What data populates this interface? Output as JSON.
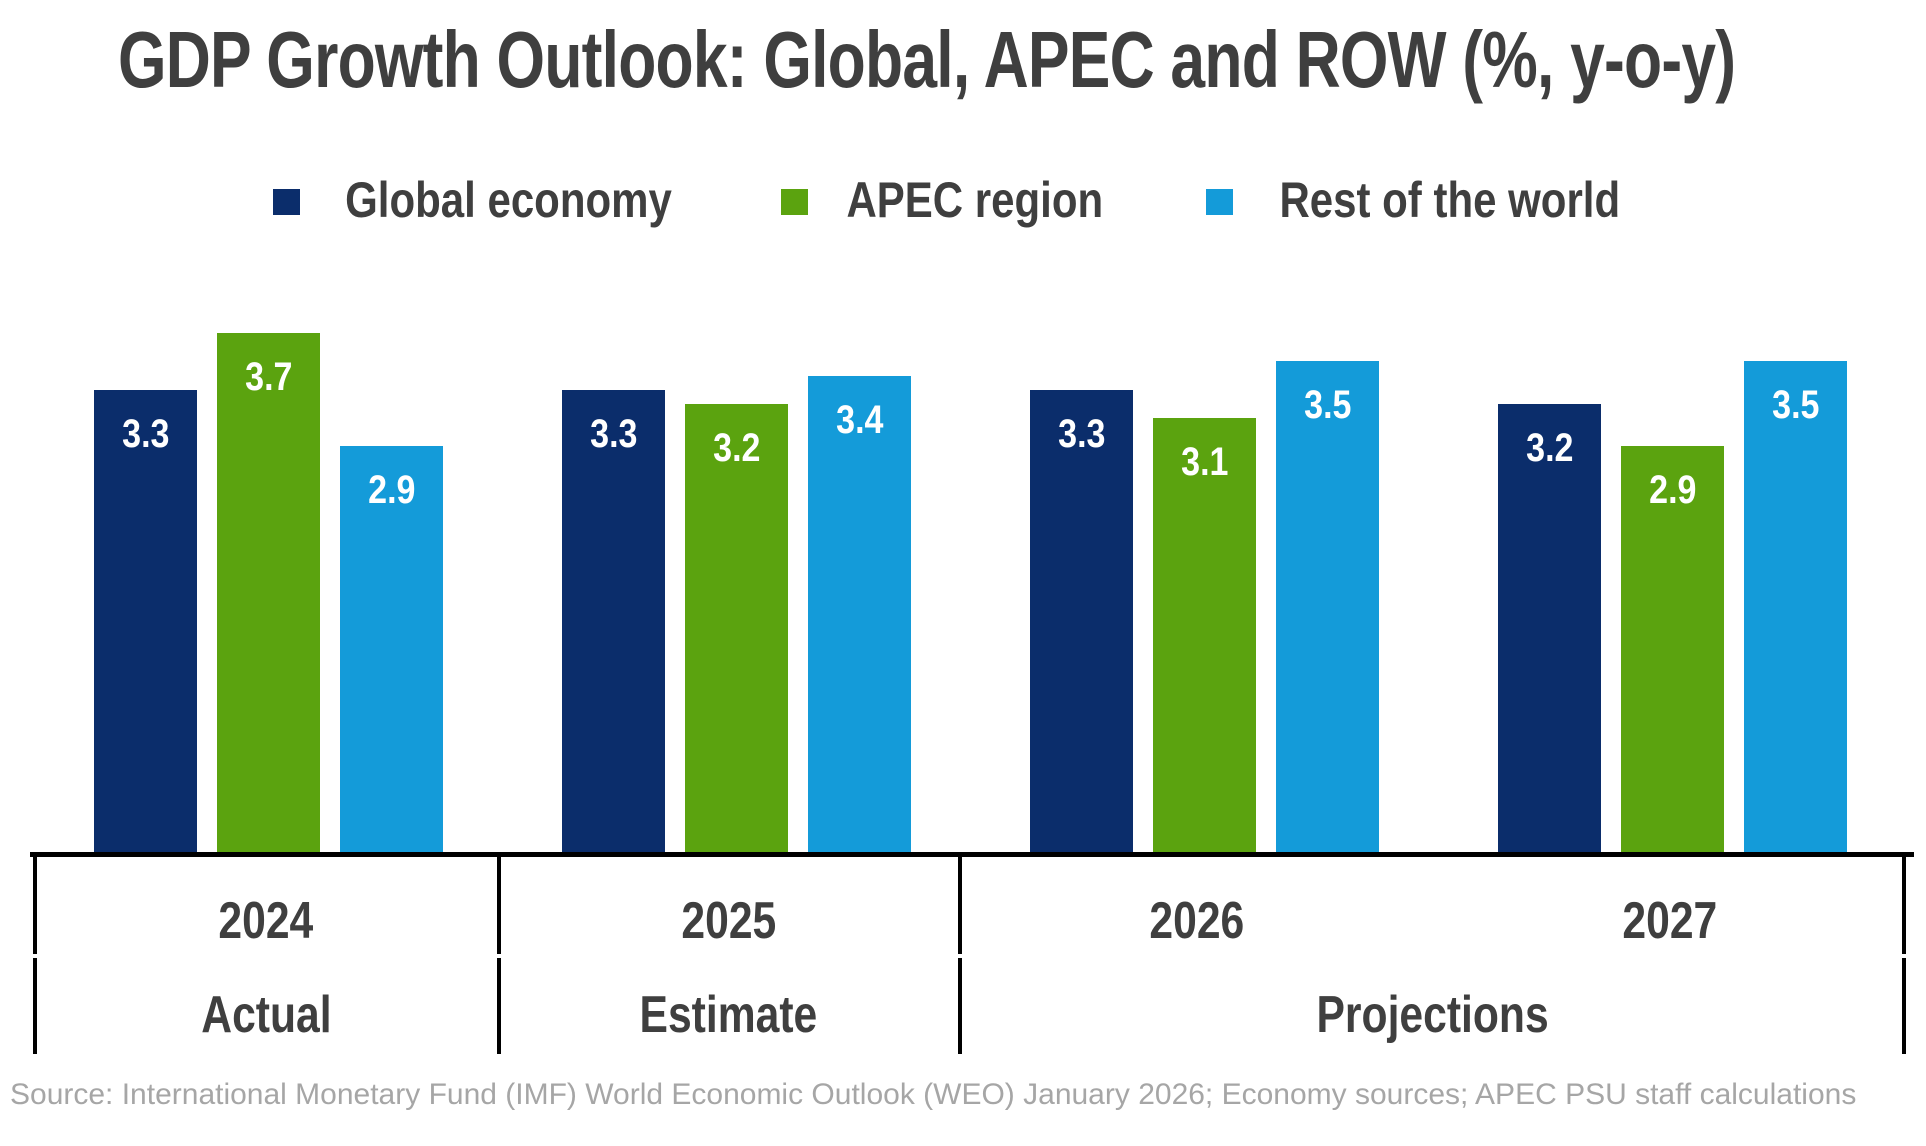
{
  "title": "GDP Growth Outlook: Global, APEC and ROW (%, y-o-y)",
  "chart_data": {
    "type": "bar",
    "categories": [
      "2024",
      "2025",
      "2026",
      "2027"
    ],
    "series": [
      {
        "name": "Global economy",
        "color": "#0b2d6b",
        "values": [
          3.3,
          3.3,
          3.3,
          3.2
        ]
      },
      {
        "name": "APEC region",
        "color": "#5ba30f",
        "values": [
          3.7,
          3.2,
          3.1,
          2.9
        ]
      },
      {
        "name": "Rest of the world",
        "color": "#149bd9",
        "values": [
          2.9,
          3.4,
          3.5,
          3.5
        ]
      }
    ],
    "title": "GDP Growth Outlook: Global, APEC and ROW (%, y-o-y)",
    "xlabel": "",
    "ylabel": "",
    "ylim": [
      0,
      4
    ],
    "grid": false,
    "y_axis_visible": false,
    "legend_position": "top",
    "data_labels": true,
    "category_groups": [
      {
        "label": "Actual",
        "categories": [
          "2024"
        ]
      },
      {
        "label": "Estimate",
        "categories": [
          "2025"
        ]
      },
      {
        "label": "Projections",
        "categories": [
          "2026",
          "2027"
        ]
      }
    ]
  },
  "axis": {
    "years": [
      "2024",
      "2025",
      "2026",
      "2027"
    ],
    "periods": [
      "Actual",
      "Estimate",
      "Projections"
    ]
  },
  "colors": {
    "global_economy": "#0b2d6b",
    "apec_region": "#5ba30f",
    "rest_of_world": "#149bd9",
    "text_dark": "#3f3f3f",
    "source_gray": "#a6a6a6",
    "axis_black": "#000000"
  },
  "source": "Source: International Monetary Fund (IMF) World Economic Outlook (WEO) January 2026; Economy sources; APEC PSU staff calculations"
}
